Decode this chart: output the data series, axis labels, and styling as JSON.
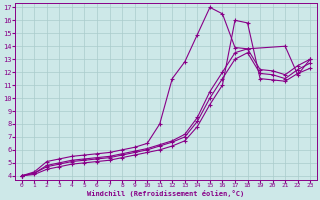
{
  "xlabel": "Windchill (Refroidissement éolien,°C)",
  "bg_color": "#cde8e8",
  "line_color": "#880088",
  "grid_color": "#aacccc",
  "xmin": -0.5,
  "xmax": 23.5,
  "ymin": 3.7,
  "ymax": 17.3,
  "xticks": [
    0,
    1,
    2,
    3,
    4,
    5,
    6,
    7,
    8,
    9,
    10,
    11,
    12,
    13,
    14,
    15,
    16,
    17,
    18,
    19,
    20,
    21,
    22,
    23
  ],
  "yticks": [
    4,
    5,
    6,
    7,
    8,
    9,
    10,
    11,
    12,
    13,
    14,
    15,
    16,
    17
  ],
  "lines": [
    {
      "x": [
        0,
        1,
        2,
        3,
        4,
        5,
        6,
        7,
        8,
        9,
        10,
        11,
        12,
        13,
        14,
        15,
        16,
        17,
        18,
        21,
        22,
        23
      ],
      "y": [
        4.0,
        4.3,
        5.1,
        5.3,
        5.5,
        5.6,
        5.7,
        5.8,
        6.0,
        6.2,
        6.5,
        8.0,
        11.5,
        12.8,
        14.9,
        17.0,
        16.5,
        13.9,
        13.8,
        14.0,
        11.8,
        13.0
      ]
    },
    {
      "x": [
        0,
        1,
        2,
        3,
        4,
        5,
        6,
        7,
        8,
        9,
        10,
        11,
        12,
        13,
        14,
        15,
        16,
        17,
        18,
        19,
        20,
        21,
        22,
        23
      ],
      "y": [
        4.0,
        4.2,
        4.8,
        5.0,
        5.2,
        5.3,
        5.4,
        5.5,
        5.7,
        5.9,
        6.1,
        6.4,
        6.7,
        7.2,
        8.5,
        10.5,
        12.0,
        13.5,
        13.8,
        12.2,
        12.1,
        11.8,
        12.5,
        13.0
      ]
    },
    {
      "x": [
        0,
        1,
        2,
        3,
        4,
        5,
        6,
        7,
        8,
        9,
        10,
        11,
        12,
        13,
        14,
        15,
        16,
        17,
        18,
        19,
        20,
        21,
        22,
        23
      ],
      "y": [
        4.0,
        4.2,
        4.7,
        4.9,
        5.1,
        5.2,
        5.3,
        5.4,
        5.6,
        5.8,
        6.0,
        6.3,
        6.6,
        7.0,
        8.2,
        10.0,
        11.5,
        13.0,
        13.5,
        11.9,
        11.8,
        11.5,
        12.2,
        12.7
      ]
    },
    {
      "x": [
        0,
        1,
        2,
        3,
        4,
        5,
        6,
        7,
        8,
        9,
        10,
        11,
        12,
        13,
        14,
        15,
        16,
        17,
        18,
        19,
        20,
        21,
        22,
        23
      ],
      "y": [
        4.0,
        4.1,
        4.5,
        4.7,
        4.9,
        5.0,
        5.1,
        5.2,
        5.4,
        5.6,
        5.8,
        6.0,
        6.3,
        6.7,
        7.8,
        9.5,
        11.0,
        16.0,
        15.8,
        11.5,
        11.4,
        11.3,
        11.9,
        12.3
      ]
    }
  ]
}
